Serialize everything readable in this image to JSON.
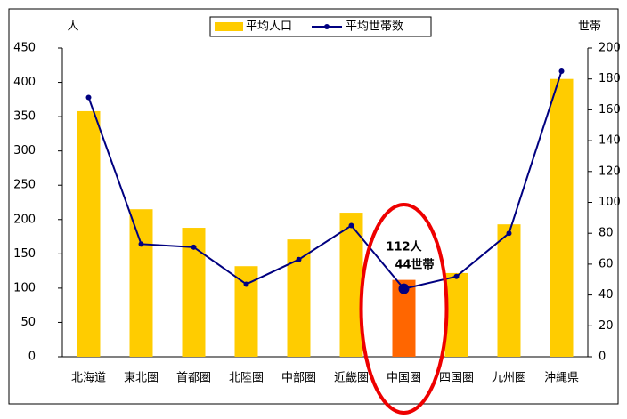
{
  "chart_data": {
    "type": "bar_line",
    "categories": [
      "北海道",
      "東北圏",
      "首都圏",
      "北陸圏",
      "中部圏",
      "近畿圏",
      "中国圏",
      "四国圏",
      "九州圏",
      "沖縄県"
    ],
    "series": [
      {
        "name": "平均人口",
        "type": "bar",
        "color": "#ffcc00",
        "colors": [
          "#ffcc00",
          "#ffcc00",
          "#ffcc00",
          "#ffcc00",
          "#ffcc00",
          "#ffcc00",
          "#ff6600",
          "#ffcc00",
          "#ffcc00",
          "#ffcc00"
        ],
        "values": [
          358,
          215,
          188,
          132,
          171,
          210,
          112,
          122,
          193,
          405
        ]
      },
      {
        "name": "平均世帯数",
        "type": "line",
        "axis": "y2",
        "color": "#000080",
        "values": [
          168,
          73,
          71,
          47,
          63,
          85,
          44,
          52,
          80,
          185
        ]
      }
    ],
    "y_label": "人",
    "y2_label": "世帯",
    "ylim": [
      0,
      450
    ],
    "yticks": [
      0,
      50,
      100,
      150,
      200,
      250,
      300,
      350,
      400,
      450
    ],
    "y2lim": [
      0,
      200
    ],
    "y2ticks": [
      0,
      20,
      40,
      60,
      80,
      100,
      120,
      140,
      160,
      180,
      200
    ],
    "annotations": [
      "112人",
      "44世帯"
    ],
    "legend": "top"
  }
}
